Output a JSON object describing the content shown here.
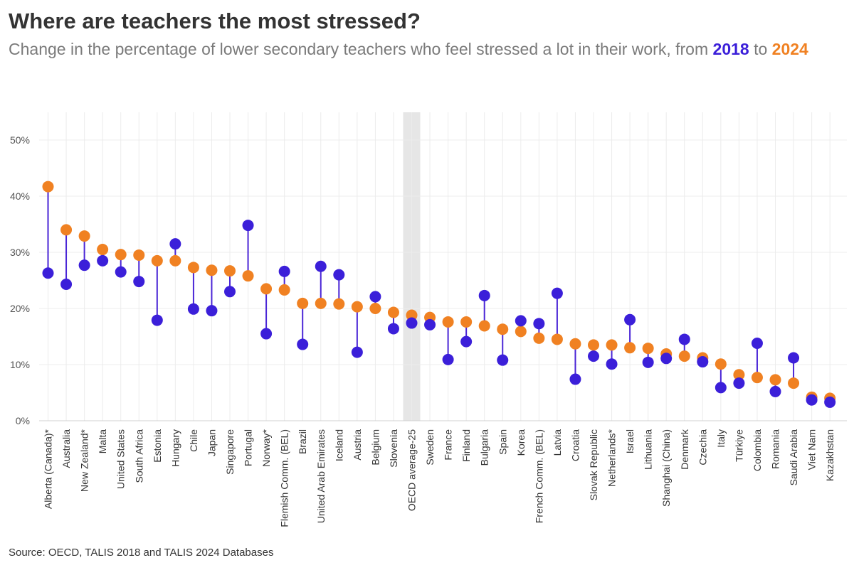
{
  "title": "Where are teachers the most stressed?",
  "subtitle": {
    "text_before": "Change in the percentage of lower secondary teachers who feel stressed a lot in their work, from ",
    "year_2018": "2018",
    "text_middle": " to ",
    "year_2024": "2024"
  },
  "source": "Source: OECD, TALIS 2018 and TALIS 2024 Databases",
  "colors": {
    "y2018": "#3b1fd9",
    "y2024": "#f08122",
    "connector": "#4a25d6",
    "highlight": "#e6e6e6",
    "grid": "#ececec"
  },
  "chart_data": {
    "type": "dumbbell",
    "ylim": [
      0,
      50
    ],
    "yticks": [
      "0%",
      "10%",
      "20%",
      "30%",
      "40%",
      "50%"
    ],
    "ytick_values": [
      0,
      10,
      20,
      30,
      40,
      50
    ],
    "highlight_category": "OECD average-25",
    "categories": [
      "Alberta (Canada)*",
      "Australia",
      "New Zealand*",
      "Malta",
      "United States",
      "South Africa",
      "Estonia",
      "Hungary",
      "Chile",
      "Japan",
      "Singapore",
      "Portugal",
      "Norway*",
      "Flemish Comm. (BEL)",
      "Brazil",
      "United Arab Emirates",
      "Iceland",
      "Austria",
      "Belgium",
      "Slovenia",
      "OECD average-25",
      "Sweden",
      "France",
      "Finland",
      "Bulgaria",
      "Spain",
      "Korea",
      "French Comm. (BEL)",
      "Latvia",
      "Croatia",
      "Slovak Republic",
      "Netherlands*",
      "Israel",
      "Lithuania",
      "Shanghai (China)",
      "Denmark",
      "Czechia",
      "Italy",
      "Türkiye",
      "Colombia",
      "Romania",
      "Saudi Arabia",
      "Viet Nam",
      "Kazakhstan"
    ],
    "series": [
      {
        "name": "2018",
        "values": [
          26.3,
          24.3,
          27.7,
          28.5,
          26.5,
          24.8,
          17.9,
          31.5,
          19.9,
          19.6,
          23.0,
          34.8,
          15.5,
          26.6,
          13.6,
          27.5,
          26.0,
          12.2,
          22.1,
          16.4,
          17.4,
          17.1,
          10.9,
          14.1,
          22.3,
          10.8,
          17.8,
          17.3,
          22.7,
          7.4,
          11.5,
          10.1,
          18.0,
          10.4,
          11.1,
          14.5,
          10.5,
          5.9,
          6.7,
          13.8,
          5.2,
          11.2,
          3.7,
          3.3
        ]
      },
      {
        "name": "2024",
        "values": [
          41.7,
          34.0,
          32.9,
          30.5,
          29.6,
          29.5,
          28.5,
          28.5,
          27.3,
          26.8,
          26.7,
          25.8,
          23.5,
          23.3,
          20.9,
          20.9,
          20.8,
          20.3,
          20.0,
          19.3,
          18.8,
          18.4,
          17.6,
          17.6,
          16.9,
          16.3,
          15.9,
          14.7,
          14.5,
          13.7,
          13.5,
          13.5,
          13.0,
          12.9,
          11.9,
          11.5,
          11.2,
          10.1,
          8.2,
          7.7,
          7.3,
          6.7,
          4.2,
          4.0
        ]
      }
    ]
  }
}
